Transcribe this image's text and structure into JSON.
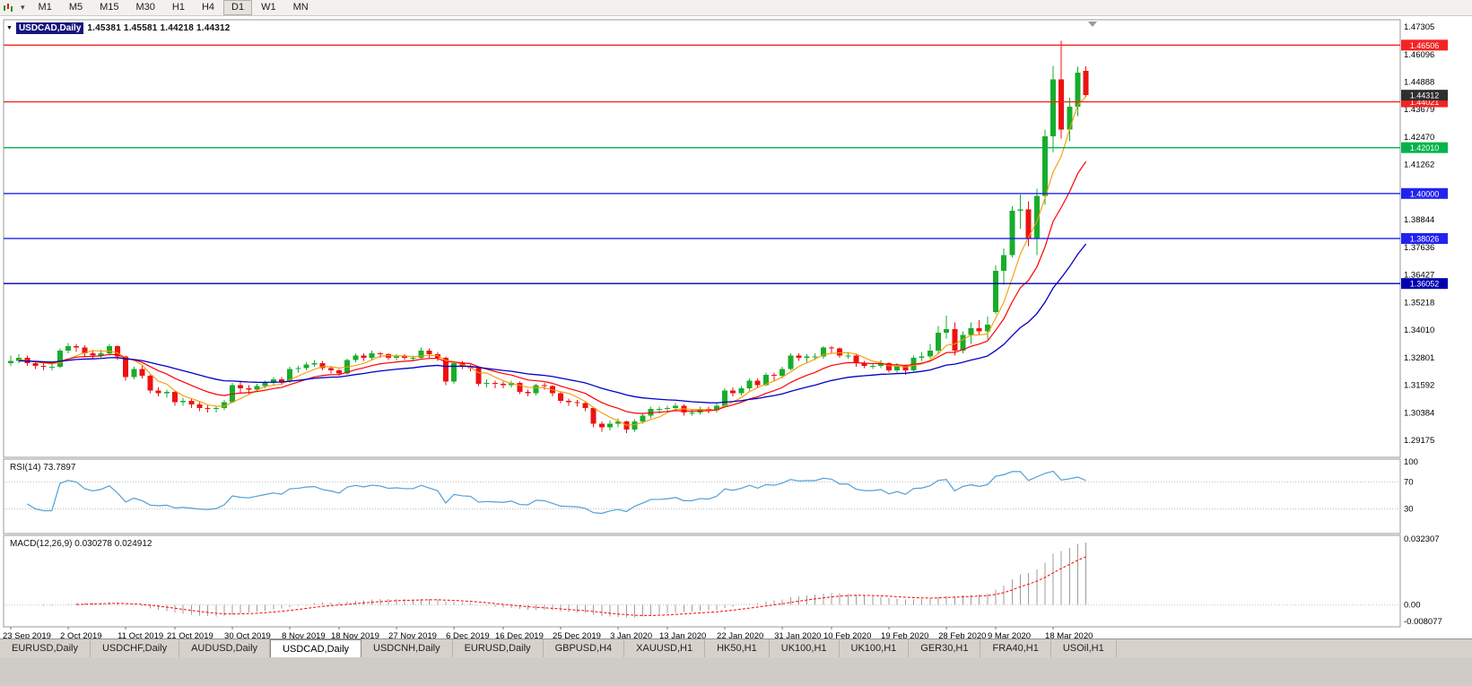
{
  "toolbar": {
    "timeframes": [
      "M1",
      "M5",
      "M15",
      "M30",
      "H1",
      "H4",
      "D1",
      "W1",
      "MN"
    ],
    "active_timeframe": "D1"
  },
  "chart": {
    "title_symbol": "USDCAD,Daily",
    "ohlc_text": "1.45381 1.45581 1.44218 1.44312",
    "open": "1.45381",
    "high": "1.45581",
    "low": "1.44218",
    "close": "1.44312",
    "current_price_label": "1.44312",
    "price_axis": [
      "1.47305",
      "1.46096",
      "1.44888",
      "1.43679",
      "1.42470",
      "1.41262",
      "1.40053",
      "1.38844",
      "1.37636",
      "1.36427",
      "1.35218",
      "1.34010",
      "1.32801",
      "1.31592",
      "1.30384",
      "1.29175"
    ],
    "hlines": [
      {
        "price": 1.46506,
        "label": "1.46506",
        "color": "#f52222"
      },
      {
        "price": 1.44021,
        "label": "1.44021",
        "color": "#f52222"
      },
      {
        "price": 1.4201,
        "label": "1.42010",
        "color": "#00b44a"
      },
      {
        "price": 1.4,
        "label": "1.40000",
        "color": "#2222f0"
      },
      {
        "price": 1.38026,
        "label": "1.38026",
        "color": "#2222f0"
      },
      {
        "price": 1.36052,
        "label": "1.36052",
        "color": "#0000b0"
      }
    ]
  },
  "chart_data": {
    "type": "candlestick",
    "symbol": "USDCAD",
    "timeframe": "Daily",
    "ylim": [
      1.2843,
      1.4762
    ],
    "x_labels": [
      "23 Sep 2019",
      "2 Oct 2019",
      "11 Oct 2019",
      "21 Oct 2019",
      "30 Oct 2019",
      "8 Nov 2019",
      "18 Nov 2019",
      "27 Nov 2019",
      "6 Dec 2019",
      "16 Dec 2019",
      "25 Dec 2019",
      "3 Jan 2020",
      "13 Jan 2020",
      "22 Jan 2020",
      "31 Jan 2020",
      "10 Feb 2020",
      "19 Feb 2020",
      "28 Feb 2020",
      "9 Mar 2020",
      "18 Mar 2020"
    ],
    "x_label_bars": [
      0,
      7,
      14,
      20,
      27,
      34,
      40,
      47,
      54,
      60,
      67,
      74,
      80,
      87,
      94,
      100,
      107,
      114,
      120,
      127
    ],
    "overlays": [
      {
        "name": "ma-fast",
        "type": "sma",
        "period": 5,
        "color": "#f59b00"
      },
      {
        "name": "ma-mid",
        "type": "ema",
        "period": 12,
        "color": "#ff0000"
      },
      {
        "name": "ma-slow",
        "type": "ema",
        "period": 30,
        "color": "#0000c8"
      }
    ],
    "candles": [
      [
        1.3255,
        1.329,
        1.3245,
        1.3265
      ],
      [
        1.3265,
        1.3295,
        1.3255,
        1.328
      ],
      [
        1.328,
        1.329,
        1.3245,
        1.3255
      ],
      [
        1.3255,
        1.3265,
        1.323,
        1.3245
      ],
      [
        1.3245,
        1.3255,
        1.3225,
        1.324
      ],
      [
        1.324,
        1.3255,
        1.3225,
        1.324
      ],
      [
        1.324,
        1.332,
        1.3235,
        1.331
      ],
      [
        1.331,
        1.3345,
        1.33,
        1.333
      ],
      [
        1.333,
        1.334,
        1.3305,
        1.3325
      ],
      [
        1.3325,
        1.3335,
        1.3285,
        1.33
      ],
      [
        1.33,
        1.331,
        1.3275,
        1.329
      ],
      [
        1.329,
        1.3315,
        1.328,
        1.33
      ],
      [
        1.33,
        1.334,
        1.329,
        1.333
      ],
      [
        1.333,
        1.3335,
        1.327,
        1.3285
      ],
      [
        1.3285,
        1.329,
        1.318,
        1.3195
      ],
      [
        1.3195,
        1.324,
        1.3185,
        1.323
      ],
      [
        1.323,
        1.3245,
        1.319,
        1.32
      ],
      [
        1.32,
        1.3205,
        1.3125,
        1.3135
      ],
      [
        1.3135,
        1.315,
        1.311,
        1.3125
      ],
      [
        1.3125,
        1.314,
        1.3105,
        1.313
      ],
      [
        1.313,
        1.3135,
        1.307,
        1.3085
      ],
      [
        1.3085,
        1.3105,
        1.307,
        1.309
      ],
      [
        1.309,
        1.31,
        1.306,
        1.3075
      ],
      [
        1.3075,
        1.3085,
        1.3045,
        1.306
      ],
      [
        1.306,
        1.3075,
        1.304,
        1.3055
      ],
      [
        1.3055,
        1.307,
        1.304,
        1.306
      ],
      [
        1.306,
        1.3095,
        1.305,
        1.3085
      ],
      [
        1.3085,
        1.317,
        1.308,
        1.316
      ],
      [
        1.316,
        1.3175,
        1.3125,
        1.3145
      ],
      [
        1.3145,
        1.316,
        1.312,
        1.314
      ],
      [
        1.314,
        1.3165,
        1.313,
        1.3155
      ],
      [
        1.3155,
        1.318,
        1.3145,
        1.317
      ],
      [
        1.317,
        1.3195,
        1.316,
        1.3185
      ],
      [
        1.3185,
        1.3195,
        1.316,
        1.3175
      ],
      [
        1.3175,
        1.324,
        1.317,
        1.323
      ],
      [
        1.323,
        1.3245,
        1.3215,
        1.3235
      ],
      [
        1.3235,
        1.326,
        1.3225,
        1.325
      ],
      [
        1.325,
        1.327,
        1.324,
        1.3255
      ],
      [
        1.3255,
        1.3265,
        1.3225,
        1.3235
      ],
      [
        1.3235,
        1.3245,
        1.321,
        1.3225
      ],
      [
        1.3225,
        1.323,
        1.32,
        1.321
      ],
      [
        1.321,
        1.3275,
        1.3205,
        1.327
      ],
      [
        1.327,
        1.33,
        1.326,
        1.329
      ],
      [
        1.329,
        1.33,
        1.3265,
        1.328
      ],
      [
        1.328,
        1.331,
        1.327,
        1.33
      ],
      [
        1.33,
        1.3305,
        1.328,
        1.3295
      ],
      [
        1.3295,
        1.33,
        1.327,
        1.328
      ],
      [
        1.328,
        1.3295,
        1.327,
        1.3285
      ],
      [
        1.3285,
        1.3295,
        1.327,
        1.328
      ],
      [
        1.328,
        1.329,
        1.3265,
        1.328
      ],
      [
        1.328,
        1.3325,
        1.3275,
        1.331
      ],
      [
        1.331,
        1.332,
        1.328,
        1.3295
      ],
      [
        1.3295,
        1.3305,
        1.3265,
        1.328
      ],
      [
        1.328,
        1.3285,
        1.316,
        1.3175
      ],
      [
        1.3175,
        1.326,
        1.3165,
        1.3255
      ],
      [
        1.3255,
        1.3265,
        1.323,
        1.324
      ],
      [
        1.324,
        1.325,
        1.322,
        1.3235
      ],
      [
        1.3235,
        1.324,
        1.3155,
        1.3165
      ],
      [
        1.3165,
        1.3185,
        1.315,
        1.317
      ],
      [
        1.317,
        1.318,
        1.3145,
        1.3165
      ],
      [
        1.3165,
        1.3175,
        1.3145,
        1.316
      ],
      [
        1.316,
        1.318,
        1.315,
        1.317
      ],
      [
        1.317,
        1.3175,
        1.312,
        1.313
      ],
      [
        1.313,
        1.314,
        1.311,
        1.3125
      ],
      [
        1.3125,
        1.3165,
        1.3115,
        1.316
      ],
      [
        1.316,
        1.317,
        1.314,
        1.3155
      ],
      [
        1.3155,
        1.316,
        1.311,
        1.3125
      ],
      [
        1.3125,
        1.313,
        1.308,
        1.309
      ],
      [
        1.309,
        1.31,
        1.307,
        1.3085
      ],
      [
        1.3085,
        1.3095,
        1.3065,
        1.308
      ],
      [
        1.308,
        1.3085,
        1.3045,
        1.306
      ],
      [
        1.306,
        1.3065,
        1.2975,
        1.299
      ],
      [
        1.299,
        1.3,
        1.2955,
        1.2975
      ],
      [
        1.2975,
        1.3005,
        1.296,
        1.299
      ],
      [
        1.299,
        1.3015,
        1.2975,
        1.3
      ],
      [
        1.3,
        1.3005,
        1.295,
        1.2965
      ],
      [
        1.2965,
        1.301,
        1.2955,
        1.3
      ],
      [
        1.3,
        1.3035,
        1.299,
        1.3025
      ],
      [
        1.3025,
        1.3065,
        1.3015,
        1.3055
      ],
      [
        1.3055,
        1.3065,
        1.3035,
        1.3055
      ],
      [
        1.3055,
        1.307,
        1.304,
        1.306
      ],
      [
        1.306,
        1.308,
        1.305,
        1.307
      ],
      [
        1.307,
        1.3075,
        1.3025,
        1.304
      ],
      [
        1.304,
        1.3055,
        1.3025,
        1.304
      ],
      [
        1.304,
        1.3065,
        1.303,
        1.3055
      ],
      [
        1.3055,
        1.3065,
        1.3035,
        1.305
      ],
      [
        1.305,
        1.308,
        1.304,
        1.307
      ],
      [
        1.307,
        1.3145,
        1.3065,
        1.3135
      ],
      [
        1.3135,
        1.315,
        1.311,
        1.3125
      ],
      [
        1.3125,
        1.3155,
        1.3115,
        1.3145
      ],
      [
        1.3145,
        1.319,
        1.3135,
        1.318
      ],
      [
        1.318,
        1.319,
        1.3145,
        1.316
      ],
      [
        1.316,
        1.3215,
        1.3155,
        1.3205
      ],
      [
        1.3205,
        1.3215,
        1.318,
        1.32
      ],
      [
        1.32,
        1.324,
        1.319,
        1.323
      ],
      [
        1.323,
        1.33,
        1.3225,
        1.329
      ],
      [
        1.329,
        1.33,
        1.3265,
        1.328
      ],
      [
        1.328,
        1.3295,
        1.326,
        1.3285
      ],
      [
        1.3285,
        1.33,
        1.327,
        1.3285
      ],
      [
        1.3285,
        1.333,
        1.3275,
        1.3325
      ],
      [
        1.3325,
        1.333,
        1.33,
        1.332
      ],
      [
        1.332,
        1.3325,
        1.328,
        1.329
      ],
      [
        1.329,
        1.3305,
        1.3275,
        1.329
      ],
      [
        1.329,
        1.3295,
        1.324,
        1.3255
      ],
      [
        1.3255,
        1.3265,
        1.3235,
        1.3245
      ],
      [
        1.3245,
        1.3255,
        1.323,
        1.3245
      ],
      [
        1.3245,
        1.327,
        1.3235,
        1.3255
      ],
      [
        1.3255,
        1.326,
        1.3215,
        1.3225
      ],
      [
        1.3225,
        1.3255,
        1.3215,
        1.3245
      ],
      [
        1.3245,
        1.325,
        1.3205,
        1.3225
      ],
      [
        1.3225,
        1.329,
        1.322,
        1.328
      ],
      [
        1.328,
        1.3305,
        1.3265,
        1.3285
      ],
      [
        1.3285,
        1.334,
        1.3275,
        1.331
      ],
      [
        1.331,
        1.342,
        1.33,
        1.339
      ],
      [
        1.339,
        1.3465,
        1.3365,
        1.3405
      ],
      [
        1.3405,
        1.3435,
        1.329,
        1.331
      ],
      [
        1.331,
        1.3395,
        1.33,
        1.338
      ],
      [
        1.338,
        1.3435,
        1.334,
        1.341
      ],
      [
        1.341,
        1.3445,
        1.338,
        1.3395
      ],
      [
        1.3395,
        1.346,
        1.336,
        1.3425
      ],
      [
        1.348,
        1.3685,
        1.347,
        1.366
      ],
      [
        1.366,
        1.376,
        1.36,
        1.373
      ],
      [
        1.373,
        1.3945,
        1.372,
        1.3925
      ],
      [
        1.3925,
        1.3995,
        1.3845,
        1.393
      ],
      [
        1.393,
        1.3965,
        1.377,
        1.38
      ],
      [
        1.38,
        1.402,
        1.373,
        1.399
      ],
      [
        1.399,
        1.428,
        1.395,
        1.425
      ],
      [
        1.425,
        1.456,
        1.418,
        1.45
      ],
      [
        1.45,
        1.4669,
        1.424,
        1.428
      ],
      [
        1.428,
        1.442,
        1.423,
        1.438
      ],
      [
        1.438,
        1.4555,
        1.434,
        1.453
      ],
      [
        1.45381,
        1.45581,
        1.44218,
        1.44312
      ]
    ]
  },
  "rsi": {
    "label": "RSI(14) 73.7897",
    "period": 14,
    "value": "73.7897",
    "levels": [
      "100",
      "70",
      "30"
    ]
  },
  "macd": {
    "label": "MACD(12,26,9) 0.030278 0.024912",
    "main_value": "0.030278",
    "signal_value": "0.024912",
    "axis": [
      "0.032307",
      "0.00",
      "-0.008077"
    ]
  },
  "tabs": [
    "EURUSD,Daily",
    "USDCHF,Daily",
    "AUDUSD,Daily",
    "USDCAD,Daily",
    "USDCNH,Daily",
    "EURUSD,Daily",
    "GBPUSD,H4",
    "XAUUSD,H1",
    "HK50,H1",
    "UK100,H1",
    "UK100,H1",
    "GER30,H1",
    "FRA40,H1",
    "USOil,H1"
  ],
  "active_tab_index": 3,
  "colors": {
    "candle_up": "#17ad2c",
    "candle_down": "#ed1212",
    "rsi_line": "#4f9fd8",
    "macd_hist": "#9d9d9d",
    "macd_signal": "#ff0000",
    "price_tag_bg": "#2e2e2e",
    "frame": "#9a9a9a"
  },
  "icons": {
    "chart_dropdown": "▾",
    "title_collapse": "▼"
  }
}
